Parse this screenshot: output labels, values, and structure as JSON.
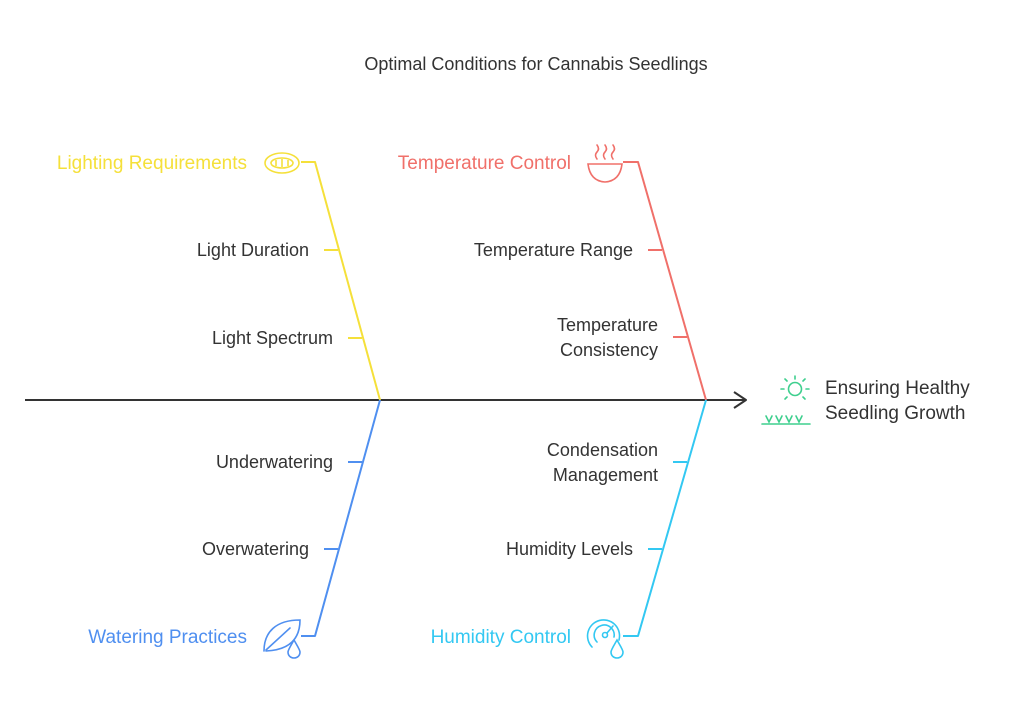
{
  "title": "Optimal Conditions for Cannabis Seedlings",
  "effect": {
    "line1": "Ensuring Healthy",
    "line2": "Seedling Growth",
    "icon": "sprout-sun-icon",
    "color": "#3ecf8e"
  },
  "categories": {
    "lighting": {
      "label": "Lighting Requirements",
      "color": "#f5e03a",
      "icon": "light-panel-icon",
      "causes": [
        {
          "line1": "Light Duration"
        },
        {
          "line1": "Light Spectrum"
        }
      ]
    },
    "temperature": {
      "label": "Temperature Control",
      "color": "#f0706a",
      "icon": "steaming-bowl-icon",
      "causes": [
        {
          "line1": "Temperature Range"
        },
        {
          "line1": "Temperature",
          "line2": "Consistency"
        }
      ]
    },
    "watering": {
      "label": "Watering Practices",
      "color": "#4f8ff0",
      "icon": "leaf-drop-icon",
      "causes": [
        {
          "line1": "Underwatering"
        },
        {
          "line1": "Overwatering"
        }
      ]
    },
    "humidity": {
      "label": "Humidity Control",
      "color": "#33c8f2",
      "icon": "gauge-drop-icon",
      "causes": [
        {
          "line1": "Condensation",
          "line2": "Management"
        },
        {
          "line1": "Humidity Levels"
        }
      ]
    }
  }
}
